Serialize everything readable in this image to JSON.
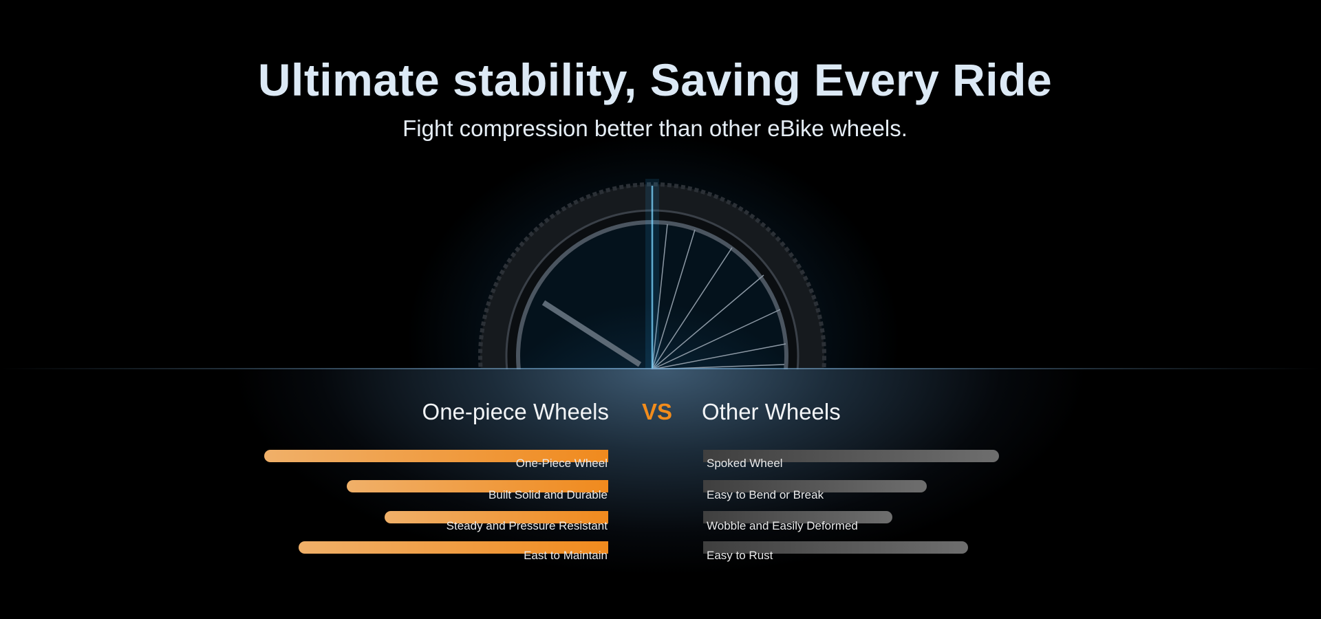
{
  "header": {
    "title": "Ultimate stability, Saving Every Ride",
    "subtitle": "Fight compression better than other eBike wheels."
  },
  "comparison": {
    "left_heading": "One-piece Wheels",
    "vs_label": "VS",
    "right_heading": "Other Wheels",
    "accent_color": "#f28c1c",
    "left_items": [
      {
        "label": "One-Piece Wheel",
        "level_pct": 100
      },
      {
        "label": "Built Solid and Durable",
        "level_pct": 76
      },
      {
        "label": "Steady and Pressure Resistant",
        "level_pct": 65
      },
      {
        "label": "East to Maintain",
        "level_pct": 90
      }
    ],
    "right_items": [
      {
        "label": "Spoked Wheel",
        "level_pct": 86
      },
      {
        "label": "Easy to Bend or Break",
        "level_pct": 65
      },
      {
        "label": "Wobble and Easily Deformed",
        "level_pct": 55
      },
      {
        "label": "Easy to Rust",
        "level_pct": 77
      }
    ]
  }
}
